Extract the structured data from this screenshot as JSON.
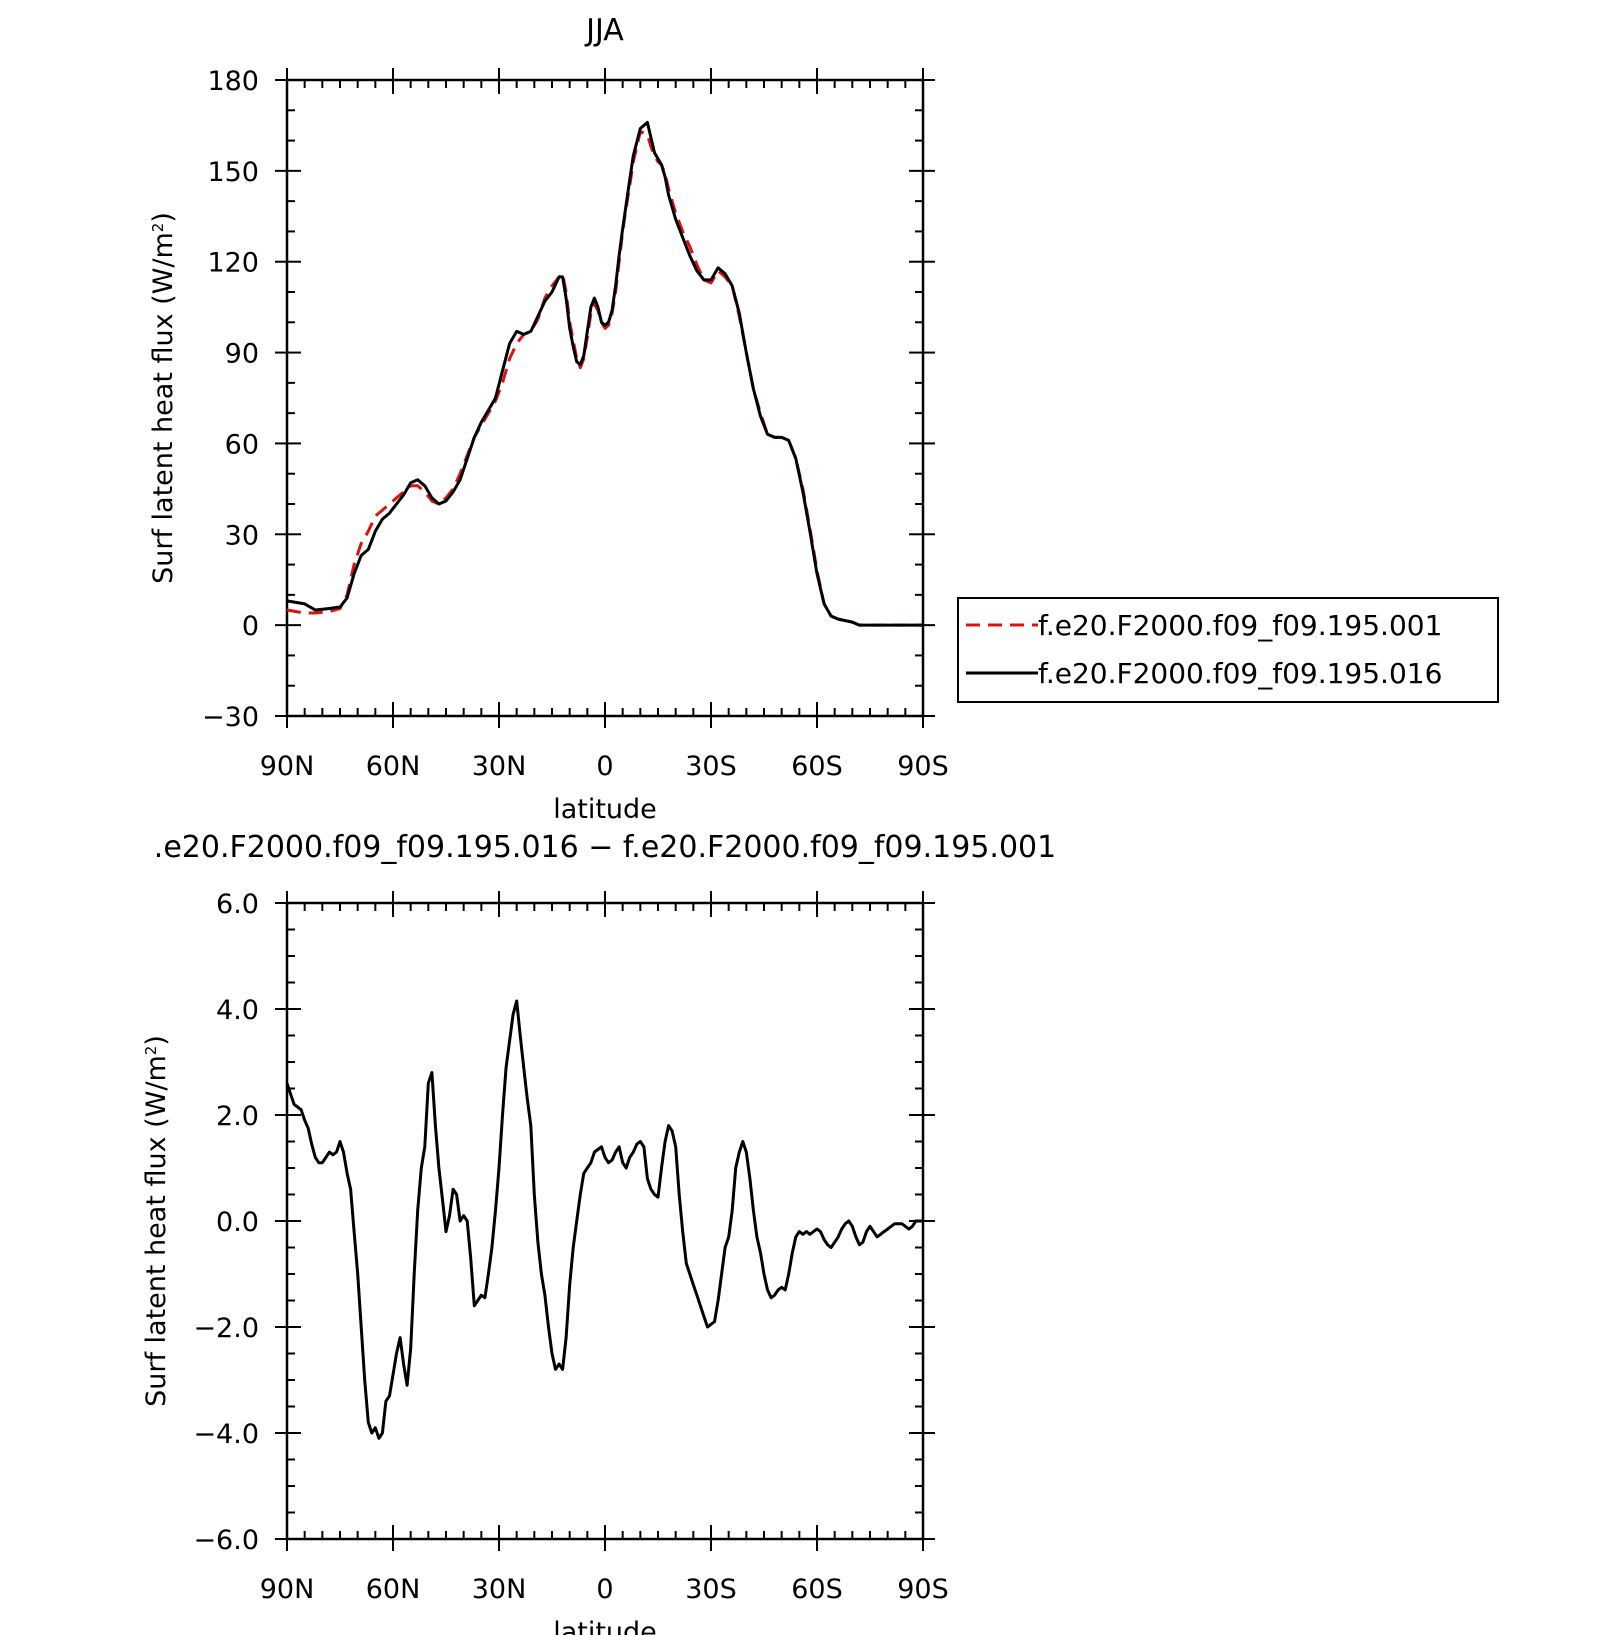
{
  "chart_data": [
    {
      "type": "line",
      "title": "JJA",
      "xlabel": "latitude",
      "ylabel": "Surf latent heat flux (W/m²)",
      "xlim": [
        90,
        -90
      ],
      "ylim": [
        -30,
        180
      ],
      "yticks": [
        -30,
        0,
        30,
        60,
        90,
        120,
        150,
        180
      ],
      "ytick_labels": [
        "−30",
        "0",
        "30",
        "60",
        "90",
        "120",
        "150",
        "180"
      ],
      "xticks": [
        90,
        60,
        30,
        0,
        -30,
        -60,
        -90
      ],
      "xtick_labels": [
        "90N",
        "60N",
        "30N",
        "0",
        "30S",
        "60S",
        "90S"
      ],
      "grid": false,
      "legend": "right",
      "series": [
        {
          "name": "f.e20.F2000.f09_f09.195.001",
          "color": "#e01010",
          "style": "dashed",
          "x": [
            90,
            85,
            82,
            78,
            75,
            73,
            71,
            69,
            67,
            65,
            63,
            61,
            59,
            57,
            55,
            53,
            51,
            49,
            47,
            45,
            43,
            41,
            39,
            37,
            35,
            33,
            31,
            29,
            27,
            25,
            23,
            21,
            19,
            17,
            15,
            13,
            12,
            11,
            10,
            9,
            8,
            7,
            6,
            5,
            4,
            3,
            2,
            1,
            0,
            -1,
            -2,
            -3,
            -4,
            -5,
            -6,
            -7,
            -8,
            -10,
            -12,
            -13,
            -14,
            -15,
            -16,
            -17,
            -18,
            -20,
            -22,
            -24,
            -26,
            -28,
            -30,
            -32,
            -34,
            -36,
            -38,
            -40,
            -42,
            -44,
            -46,
            -48,
            -50,
            -52,
            -54,
            -56,
            -58,
            -60,
            -62,
            -64,
            -66,
            -68,
            -70,
            -72,
            -74,
            -76,
            -78,
            -80,
            -82,
            -84,
            -86,
            -88,
            -90
          ],
          "y": [
            5,
            4,
            4,
            4.5,
            5.5,
            10,
            20,
            27,
            31,
            36,
            38,
            40,
            42,
            44,
            46,
            46,
            44,
            41,
            40,
            42,
            45,
            50,
            56,
            62,
            66,
            70,
            74,
            80,
            88,
            93,
            96,
            97,
            101,
            108,
            112,
            115,
            116,
            110,
            100,
            94,
            88,
            85,
            88,
            95,
            103,
            106,
            104,
            100,
            98,
            99,
            103,
            110,
            120,
            130,
            138,
            145,
            153,
            163,
            162,
            158,
            155,
            153,
            152,
            149,
            144,
            136,
            130,
            125,
            119,
            114,
            113,
            117,
            115,
            112,
            102,
            90,
            78,
            70,
            63,
            62,
            62,
            61,
            55,
            45,
            32,
            18,
            7,
            3,
            2,
            1.5,
            1,
            0,
            0,
            0,
            0,
            0,
            0,
            0,
            0,
            0,
            0
          ]
        },
        {
          "name": "f.e20.F2000.f09_f09.195.016",
          "color": "#000000",
          "style": "solid",
          "x": [
            90,
            85,
            82,
            78,
            75,
            73,
            71,
            69,
            67,
            65,
            63,
            61,
            59,
            57,
            55,
            53,
            51,
            49,
            47,
            45,
            43,
            41,
            39,
            37,
            35,
            33,
            31,
            29,
            27,
            25,
            23,
            21,
            19,
            17,
            15,
            13,
            12,
            11,
            10,
            9,
            8,
            7,
            6,
            5,
            4,
            3,
            2,
            1,
            0,
            -1,
            -2,
            -3,
            -4,
            -5,
            -6,
            -7,
            -8,
            -10,
            -12,
            -13,
            -14,
            -15,
            -16,
            -17,
            -18,
            -20,
            -22,
            -24,
            -26,
            -28,
            -30,
            -32,
            -34,
            -36,
            -38,
            -40,
            -42,
            -44,
            -46,
            -48,
            -50,
            -52,
            -54,
            -56,
            -58,
            -60,
            -62,
            -64,
            -66,
            -68,
            -70,
            -72,
            -74,
            -76,
            -78,
            -80,
            -82,
            -84,
            -86,
            -88,
            -90
          ],
          "y": [
            8,
            7,
            5,
            5.5,
            6,
            9,
            17,
            23,
            25,
            31,
            35,
            37,
            40,
            43,
            47,
            48,
            46,
            42,
            40,
            41,
            44,
            48,
            55,
            62,
            67,
            71,
            75,
            84,
            93,
            97,
            96,
            97,
            102,
            107,
            110,
            115,
            115,
            108,
            98,
            92,
            87,
            86,
            89,
            97,
            105,
            108,
            105,
            100,
            99,
            100,
            104,
            112,
            122,
            131,
            139,
            147,
            155,
            164,
            166,
            161,
            156,
            154,
            152,
            148,
            142,
            134,
            128,
            122,
            117,
            114,
            114,
            118,
            116,
            112,
            103,
            90,
            78,
            69,
            63,
            62,
            62,
            61,
            55,
            44,
            31,
            17,
            7,
            3,
            2,
            1.5,
            1,
            0,
            0,
            0,
            0,
            0,
            0,
            0,
            0,
            0,
            0
          ]
        }
      ]
    },
    {
      "type": "line",
      "title": ".e20.F2000.f09_f09.195.016 − f.e20.F2000.f09_f09.195.001",
      "xlabel": "latitude",
      "ylabel": "Surf latent heat flux (W/m²)",
      "xlim": [
        90,
        -90
      ],
      "ylim": [
        -6,
        6
      ],
      "yticks": [
        -6,
        -4,
        -2,
        0,
        2,
        4,
        6
      ],
      "ytick_labels": [
        "−6.0",
        "−4.0",
        "−2.0",
        "0.0",
        "2.0",
        "4.0",
        "6.0"
      ],
      "xticks": [
        90,
        60,
        30,
        0,
        -30,
        -60,
        -90
      ],
      "xtick_labels": [
        "90N",
        "60N",
        "30N",
        "0",
        "30S",
        "60S",
        "90S"
      ],
      "grid": false,
      "series": [
        {
          "color": "#000000",
          "style": "solid",
          "x": [
            90,
            89,
            88,
            87,
            86,
            85,
            84,
            83,
            82,
            81,
            80,
            79,
            78,
            77,
            76,
            75,
            74,
            73,
            72,
            71,
            70,
            69,
            68,
            67,
            66,
            65,
            64,
            63,
            62,
            61,
            60,
            59,
            58,
            57,
            56,
            55,
            54,
            53,
            52,
            51,
            50,
            49,
            48,
            47,
            46,
            45,
            44,
            43,
            42,
            41,
            40,
            39,
            38,
            37,
            36,
            35,
            34,
            33,
            32,
            31,
            30,
            29,
            28,
            27,
            26,
            25,
            24,
            23,
            22,
            21,
            20,
            19,
            18,
            17,
            16,
            15,
            14,
            13,
            12,
            11,
            10,
            9,
            8,
            7,
            6,
            5,
            4,
            3,
            2,
            1,
            0,
            -1,
            -2,
            -3,
            -4,
            -5,
            -6,
            -7,
            -8,
            -9,
            -10,
            -11,
            -12,
            -13,
            -14,
            -15,
            -16,
            -17,
            -18,
            -19,
            -20,
            -21,
            -22,
            -23,
            -24,
            -25,
            -26,
            -27,
            -28,
            -29,
            -30,
            -31,
            -32,
            -33,
            -34,
            -35,
            -36,
            -37,
            -38,
            -39,
            -40,
            -41,
            -42,
            -43,
            -44,
            -45,
            -46,
            -47,
            -48,
            -49,
            -50,
            -51,
            -52,
            -53,
            -54,
            -55,
            -56,
            -57,
            -58,
            -59,
            -60,
            -61,
            -62,
            -63,
            -64,
            -65,
            -66,
            -67,
            -68,
            -69,
            -70,
            -71,
            -72,
            -73,
            -74,
            -75,
            -76,
            -77,
            -78,
            -79,
            -80,
            -81,
            -82,
            -83,
            -84,
            -85,
            -86,
            -87,
            -88,
            -89,
            -90
          ],
          "y": [
            2.6,
            2.4,
            2.2,
            2.15,
            2.1,
            1.9,
            1.75,
            1.45,
            1.2,
            1.1,
            1.1,
            1.2,
            1.3,
            1.25,
            1.3,
            1.5,
            1.3,
            0.9,
            0.6,
            -0.2,
            -1.0,
            -2.0,
            -3.0,
            -3.8,
            -4.0,
            -3.9,
            -4.1,
            -4.0,
            -3.4,
            -3.3,
            -2.9,
            -2.5,
            -2.2,
            -2.7,
            -3.1,
            -2.4,
            -1.0,
            0.2,
            1.0,
            1.4,
            2.6,
            2.8,
            1.8,
            1.0,
            0.4,
            -0.2,
            0.1,
            0.6,
            0.5,
            0.0,
            0.1,
            0.0,
            -0.7,
            -1.6,
            -1.5,
            -1.4,
            -1.45,
            -1.0,
            -0.5,
            0.2,
            1.0,
            2.0,
            2.9,
            3.4,
            3.9,
            4.15,
            3.5,
            2.9,
            2.3,
            1.8,
            0.5,
            -0.4,
            -1.0,
            -1.4,
            -2.0,
            -2.5,
            -2.8,
            -2.7,
            -2.8,
            -2.2,
            -1.2,
            -0.5,
            0.0,
            0.5,
            0.9,
            1.0,
            1.1,
            1.3,
            1.35,
            1.4,
            1.2,
            1.1,
            1.15,
            1.3,
            1.4,
            1.1,
            1.0,
            1.2,
            1.3,
            1.45,
            1.5,
            1.4,
            0.8,
            0.6,
            0.5,
            0.45,
            1.0,
            1.5,
            1.8,
            1.7,
            1.4,
            0.5,
            -0.2,
            -0.8,
            -1.0,
            -1.2,
            -1.4,
            -1.6,
            -1.8,
            -2.0,
            -1.95,
            -1.9,
            -1.5,
            -1.0,
            -0.5,
            -0.3,
            0.2,
            1.0,
            1.3,
            1.5,
            1.3,
            0.8,
            0.2,
            -0.3,
            -0.6,
            -1.0,
            -1.3,
            -1.45,
            -1.4,
            -1.3,
            -1.25,
            -1.3,
            -1.0,
            -0.6,
            -0.3,
            -0.2,
            -0.25,
            -0.2,
            -0.25,
            -0.2,
            -0.15,
            -0.2,
            -0.35,
            -0.45,
            -0.5,
            -0.4,
            -0.3,
            -0.15,
            -0.05,
            0.0,
            -0.1,
            -0.3,
            -0.45,
            -0.4,
            -0.2,
            -0.1,
            -0.2,
            -0.3,
            -0.25,
            -0.2,
            -0.15,
            -0.1,
            -0.05,
            -0.05,
            -0.05,
            -0.1,
            -0.15,
            -0.1,
            0.0,
            0.0,
            0.0
          ]
        }
      ]
    }
  ]
}
